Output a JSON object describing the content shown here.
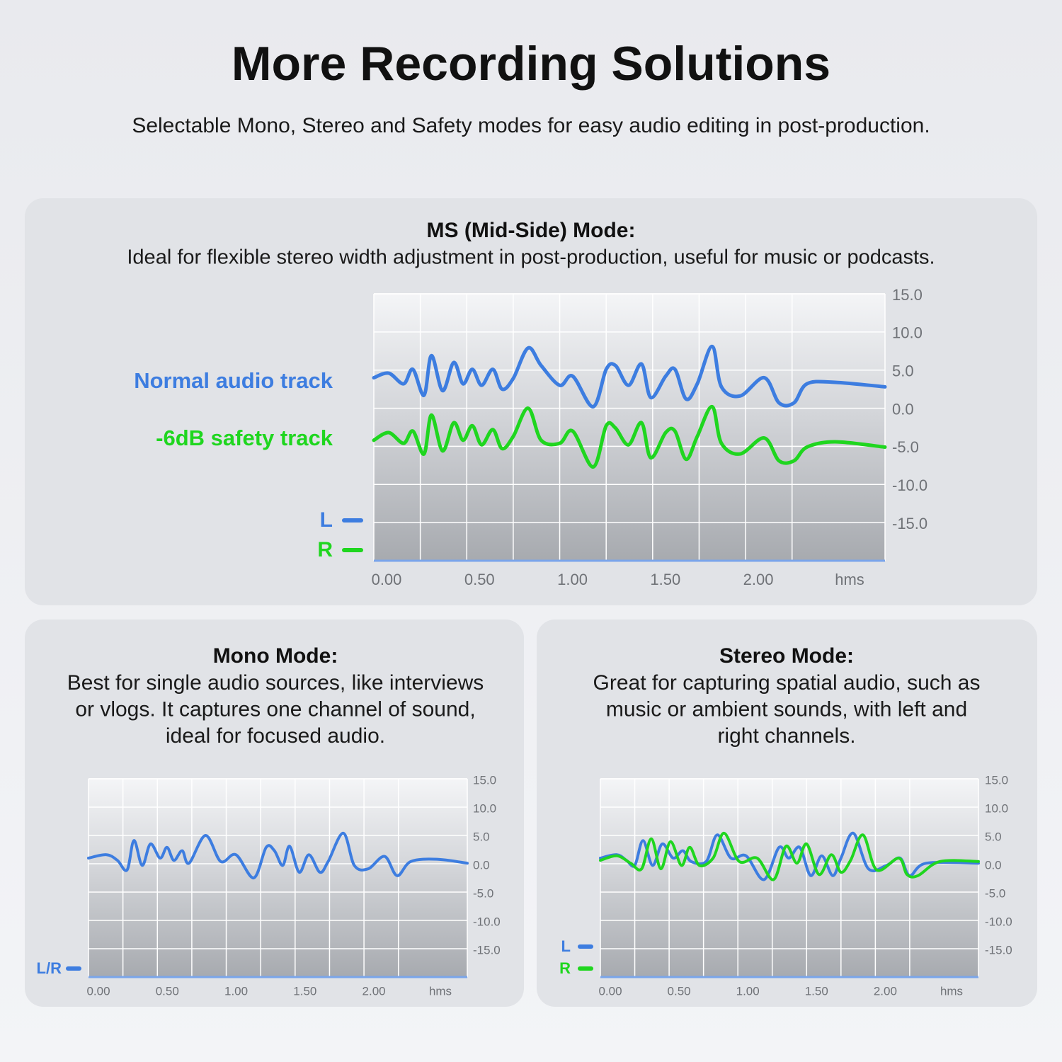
{
  "header": {
    "title": "More Recording Solutions",
    "subtitle": "Selectable Mono, Stereo and Safety modes for easy audio editing in post-production."
  },
  "chart_data": [
    {
      "type": "line",
      "title": "MS (Mid-Side) Mode:",
      "description": "Ideal for flexible stereo width adjustment in post-production, useful for music or podcasts.",
      "xlabel": "hms",
      "xlim": [
        0,
        2.75
      ],
      "xticks": [
        {
          "value": 0,
          "label": "0.00"
        },
        {
          "value": 0.5,
          "label": "0.50"
        },
        {
          "value": 1,
          "label": "1.00"
        },
        {
          "value": 1.5,
          "label": "1.50"
        },
        {
          "value": 2,
          "label": "2.00"
        }
      ],
      "ylim": [
        -20,
        15
      ],
      "yticks": [
        {
          "value": 15,
          "label": "15.0"
        },
        {
          "value": 10,
          "label": "10.0"
        },
        {
          "value": 5,
          "label": "5.0"
        },
        {
          "value": 0,
          "label": "0.0"
        },
        {
          "value": -5,
          "label": "-5.0"
        },
        {
          "value": -10,
          "label": "-10.0"
        },
        {
          "value": -15,
          "label": "-15.0"
        }
      ],
      "grid": true,
      "channels": [
        {
          "label": "L",
          "color": "#3d7de0"
        },
        {
          "label": "R",
          "color": "#1fd61f"
        }
      ],
      "series": [
        {
          "name": "Normal audio track",
          "color": "#3d7de0",
          "x": [
            0,
            0.08,
            0.16,
            0.21,
            0.27,
            0.31,
            0.37,
            0.43,
            0.48,
            0.53,
            0.58,
            0.64,
            0.69,
            0.75,
            0.83,
            0.9,
            1,
            1.07,
            1.18,
            1.25,
            1.3,
            1.37,
            1.44,
            1.49,
            1.57,
            1.62,
            1.68,
            1.74,
            1.82,
            1.87,
            1.97,
            2.1,
            2.18,
            2.26,
            2.33,
            2.48,
            2.75
          ],
          "values": [
            4.0,
            4.6,
            3.2,
            5.1,
            1.7,
            6.9,
            2.3,
            6.0,
            3.2,
            5.1,
            3.0,
            5.1,
            2.5,
            3.9,
            7.9,
            5.6,
            3.0,
            4.2,
            0.2,
            5.1,
            5.6,
            3.0,
            5.8,
            1.4,
            4.2,
            5.1,
            1.2,
            3.2,
            8.1,
            2.8,
            1.6,
            4.0,
            0.7,
            0.7,
            3.2,
            3.4,
            2.8
          ]
        },
        {
          "name": "-6dB safety track",
          "color": "#1fd61f",
          "x": [
            0,
            0.08,
            0.16,
            0.21,
            0.27,
            0.31,
            0.37,
            0.43,
            0.48,
            0.53,
            0.58,
            0.64,
            0.69,
            0.75,
            0.83,
            0.9,
            1,
            1.07,
            1.18,
            1.25,
            1.3,
            1.37,
            1.44,
            1.49,
            1.57,
            1.62,
            1.68,
            1.74,
            1.82,
            1.87,
            1.97,
            2.1,
            2.18,
            2.26,
            2.33,
            2.48,
            2.75
          ],
          "values": [
            -4.2,
            -3.2,
            -4.6,
            -3.0,
            -6.0,
            -0.9,
            -5.6,
            -1.9,
            -4.2,
            -2.3,
            -4.8,
            -2.8,
            -5.3,
            -3.7,
            0.0,
            -4.2,
            -4.6,
            -3.0,
            -7.7,
            -2.3,
            -2.6,
            -4.8,
            -1.9,
            -6.5,
            -3.2,
            -3.0,
            -6.7,
            -3.7,
            0.2,
            -4.6,
            -6.0,
            -3.9,
            -6.9,
            -6.9,
            -5.1,
            -4.4,
            -5.1
          ]
        }
      ]
    },
    {
      "type": "line",
      "title": "Mono Mode:",
      "description": [
        "Best for single audio sources, like interviews",
        "or vlogs. It captures one channel of sound,",
        "ideal for focused audio."
      ],
      "xlabel": "hms",
      "xlim": [
        0,
        2.75
      ],
      "xticks": [
        {
          "value": 0,
          "label": "0.00"
        },
        {
          "value": 0.5,
          "label": "0.50"
        },
        {
          "value": 1,
          "label": "1.00"
        },
        {
          "value": 1.5,
          "label": "1.50"
        },
        {
          "value": 2,
          "label": "2.00"
        }
      ],
      "ylim": [
        -20,
        15
      ],
      "yticks": [
        {
          "value": 15,
          "label": "15.0"
        },
        {
          "value": 10,
          "label": "10.0"
        },
        {
          "value": 5,
          "label": "5.0"
        },
        {
          "value": 0,
          "label": "0.0"
        },
        {
          "value": -5,
          "label": "-5.0"
        },
        {
          "value": -10,
          "label": "-10.0"
        },
        {
          "value": -15,
          "label": "-15.0"
        }
      ],
      "grid": true,
      "series": [
        {
          "name": "L/R",
          "color": "#3d7de0",
          "x": [
            0,
            0.13,
            0.21,
            0.28,
            0.33,
            0.39,
            0.45,
            0.52,
            0.57,
            0.62,
            0.68,
            0.73,
            0.85,
            0.96,
            1.07,
            1.2,
            1.29,
            1.35,
            1.41,
            1.46,
            1.53,
            1.6,
            1.68,
            1.74,
            1.85,
            1.93,
            2.03,
            2.15,
            2.24,
            2.34,
            2.53,
            2.75
          ],
          "values": [
            1.0,
            1.6,
            0.6,
            -1.1,
            4.1,
            -0.3,
            3.5,
            1.0,
            2.9,
            0.6,
            2.3,
            0.1,
            5.0,
            0.4,
            1.6,
            -2.5,
            2.9,
            2.3,
            -0.3,
            3.1,
            -1.5,
            1.6,
            -1.5,
            0.4,
            5.4,
            -0.3,
            -0.9,
            1.3,
            -2.1,
            0.4,
            0.8,
            0.1
          ]
        }
      ]
    },
    {
      "type": "line",
      "title": "Stereo Mode:",
      "description": [
        "Great for capturing spatial audio, such as",
        "music or ambient sounds, with left and",
        "right channels."
      ],
      "xlabel": "hms",
      "xlim": [
        0,
        2.75
      ],
      "xticks": [
        {
          "value": 0,
          "label": "0.00"
        },
        {
          "value": 0.5,
          "label": "0.50"
        },
        {
          "value": 1,
          "label": "1.00"
        },
        {
          "value": 1.5,
          "label": "1.50"
        },
        {
          "value": 2,
          "label": "2.00"
        }
      ],
      "ylim": [
        -20,
        15
      ],
      "yticks": [
        {
          "value": 15,
          "label": "15.0"
        },
        {
          "value": 10,
          "label": "10.0"
        },
        {
          "value": 5,
          "label": "5.0"
        },
        {
          "value": 0,
          "label": "0.0"
        },
        {
          "value": -5,
          "label": "-5.0"
        },
        {
          "value": -10,
          "label": "-10.0"
        },
        {
          "value": -15,
          "label": "-15.0"
        }
      ],
      "grid": true,
      "series": [
        {
          "name": "L",
          "color": "#3d7de0",
          "x": [
            0,
            0.12,
            0.19,
            0.25,
            0.31,
            0.38,
            0.45,
            0.53,
            0.6,
            0.66,
            0.77,
            0.85,
            0.95,
            1.06,
            1.19,
            1.3,
            1.37,
            1.45,
            1.53,
            1.61,
            1.69,
            1.75,
            1.84,
            1.95,
            2.08,
            2.18,
            2.25,
            2.37,
            2.75
          ],
          "values": [
            1.0,
            1.6,
            0.6,
            -0.3,
            4.1,
            -0.3,
            3.5,
            1.0,
            2.3,
            0.4,
            0.4,
            5.1,
            1.0,
            1.4,
            -2.8,
            2.9,
            1.0,
            2.9,
            -2.1,
            1.4,
            -2.1,
            1.0,
            5.4,
            -0.9,
            -0.3,
            1.0,
            -2.1,
            0.1,
            0.1
          ]
        },
        {
          "name": "R",
          "color": "#1fd61f",
          "x": [
            0,
            0.12,
            0.22,
            0.3,
            0.37,
            0.44,
            0.51,
            0.59,
            0.65,
            0.72,
            0.82,
            0.9,
            1.01,
            1.14,
            1.26,
            1.35,
            1.43,
            1.5,
            1.59,
            1.68,
            1.75,
            1.82,
            1.91,
            2.01,
            2.17,
            2.23,
            2.31,
            2.47,
            2.75
          ],
          "values": [
            0.6,
            1.4,
            0.1,
            -0.9,
            4.4,
            -0.9,
            3.9,
            -0.3,
            2.9,
            -0.3,
            1.0,
            5.4,
            0.4,
            1.0,
            -2.8,
            3.1,
            0.1,
            3.5,
            -1.9,
            1.6,
            -1.5,
            0.6,
            5.1,
            -1.1,
            1.0,
            -1.9,
            -2.1,
            0.4,
            0.4
          ]
        }
      ]
    }
  ]
}
